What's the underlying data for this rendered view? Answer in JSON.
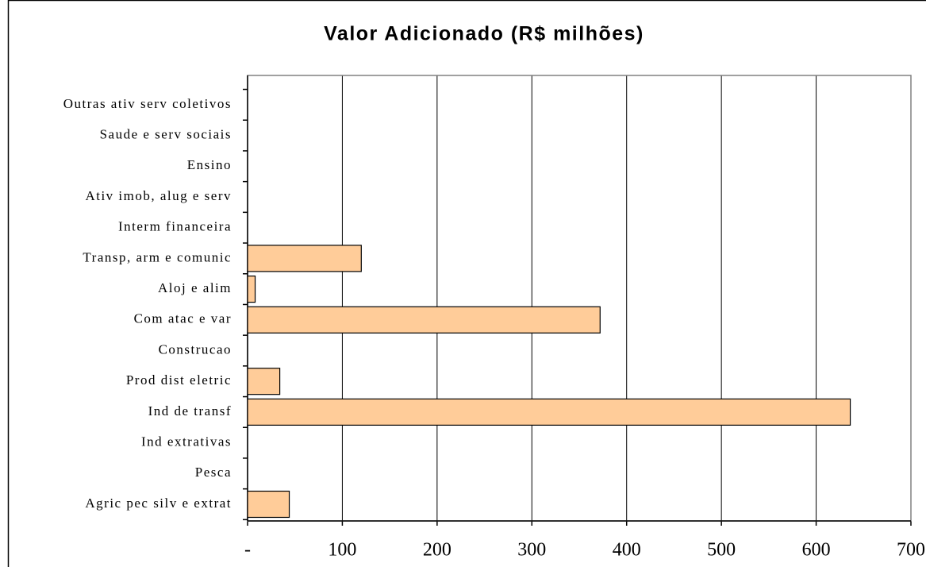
{
  "chart_data": {
    "type": "barh",
    "title": "Valor Adicionado (R$ milhões)",
    "categories": [
      "Agric pec silv e extrat",
      "Pesca",
      "Ind extrativas",
      "Ind de transf",
      "Prod dist eletric",
      "Construcao",
      "Com atac e var",
      "Aloj e alim",
      "Transp, arm e comunic",
      "Interm financeira",
      "Ativ imob, alug e serv",
      "Ensino",
      "Saude e serv sociais",
      "Outras ativ serv coletivos"
    ],
    "values": [
      44,
      0,
      0,
      636,
      34,
      0,
      372,
      8,
      120,
      0,
      0,
      0,
      0,
      0
    ],
    "color": "#ffcc99",
    "xlim": [
      0,
      700
    ],
    "xticks": [
      {
        "value": 0,
        "label": "-"
      },
      100,
      200,
      300,
      400,
      500,
      600,
      700
    ],
    "grid": true
  }
}
